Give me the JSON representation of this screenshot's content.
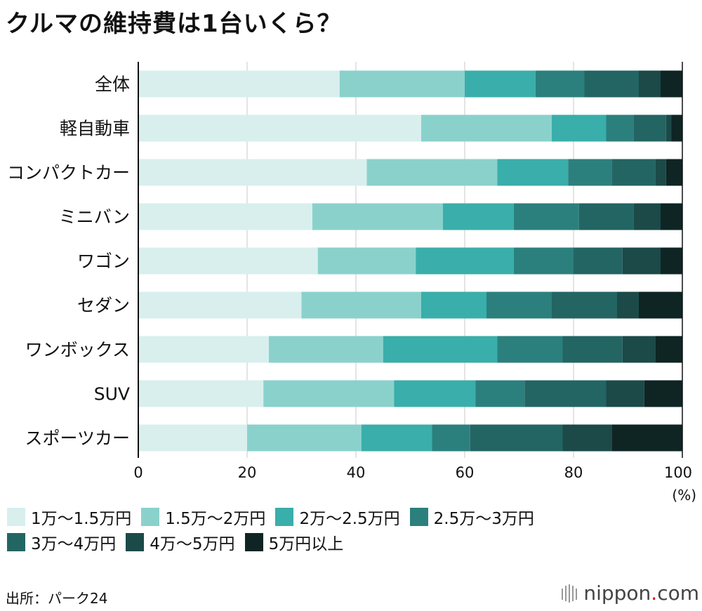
{
  "title": "クルマの維持費は1台いくら？",
  "chart_data": {
    "type": "bar",
    "orientation": "horizontal",
    "stacked": true,
    "title": "クルマの維持費は1台いくら？",
    "xlabel": "",
    "xunit": "(%)",
    "xlim": [
      0,
      100
    ],
    "xticks": [
      "0",
      "20",
      "40",
      "60",
      "80",
      "100"
    ],
    "grid": true,
    "categories": [
      "全体",
      "軽自動車",
      "コンパクトカー",
      "ミニバン",
      "ワゴン",
      "セダン",
      "ワンボックス",
      "SUV",
      "スポーツカー"
    ],
    "series": [
      {
        "name": "1万～1.5万円",
        "color": "#d8efee",
        "values": [
          37,
          52,
          42,
          32,
          33,
          30,
          24,
          23,
          20
        ]
      },
      {
        "name": "1.5万～2万円",
        "color": "#8ad1cc",
        "values": [
          23,
          24,
          24,
          24,
          18,
          22,
          21,
          24,
          21
        ]
      },
      {
        "name": "2万～2.5万円",
        "color": "#3aaeaa",
        "values": [
          13,
          10,
          13,
          13,
          18,
          12,
          21,
          15,
          13
        ]
      },
      {
        "name": "2.5万～3万円",
        "color": "#2b807e",
        "values": [
          9,
          5,
          8,
          12,
          11,
          12,
          12,
          9,
          7
        ]
      },
      {
        "name": "3万～4万円",
        "color": "#236563",
        "values": [
          10,
          6,
          8,
          10,
          9,
          12,
          11,
          15,
          17
        ]
      },
      {
        "name": "4万～5万円",
        "color": "#1b4a48",
        "values": [
          4,
          1,
          2,
          5,
          7,
          4,
          6,
          7,
          9
        ]
      },
      {
        "name": "5万円以上",
        "color": "#0e2524",
        "values": [
          4,
          2,
          3,
          4,
          4,
          8,
          5,
          7,
          13
        ]
      }
    ]
  },
  "legend_rows": [
    [
      "1万～1.5万円",
      "1.5万～2万円",
      "2万～2.5万円",
      "2.5万～3万円"
    ],
    [
      "3万～4万円",
      "4万～5万円",
      "5万円以上"
    ]
  ],
  "source": "出所：パーク24",
  "logo": {
    "prefix": "nippon",
    "dot": ".",
    "suffix": "com"
  }
}
